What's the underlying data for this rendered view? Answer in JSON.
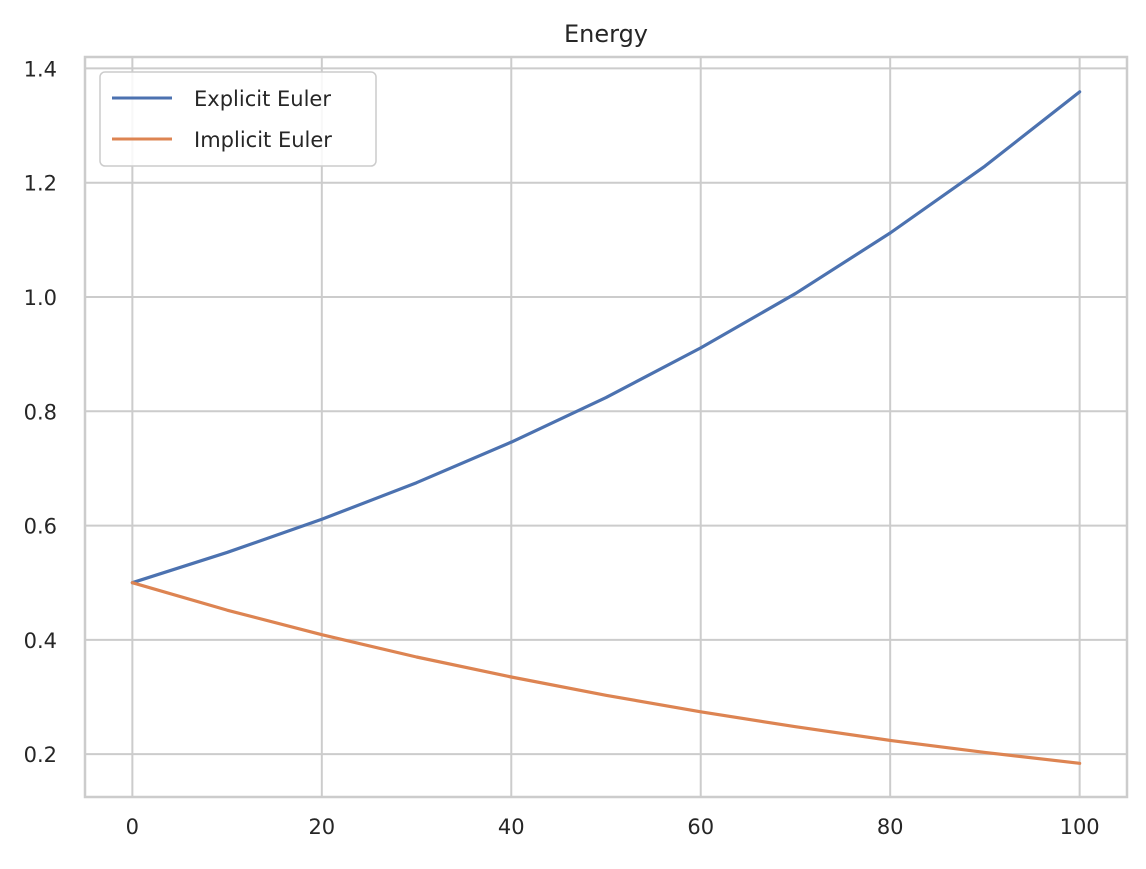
{
  "chart_data": {
    "type": "line",
    "title": "Energy",
    "xlabel": "",
    "ylabel": "",
    "xlim": [
      -5,
      105
    ],
    "ylim": [
      0.125,
      1.42
    ],
    "xticks": [
      0,
      20,
      40,
      60,
      80,
      100
    ],
    "yticks": [
      0.2,
      0.4,
      0.6,
      0.8,
      1.0,
      1.2,
      1.4
    ],
    "xtick_labels": [
      "0",
      "20",
      "40",
      "60",
      "80",
      "100"
    ],
    "ytick_labels": [
      "0.2",
      "0.4",
      "0.6",
      "0.8",
      "1.0",
      "1.2",
      "1.4"
    ],
    "grid": true,
    "legend_position": "top-left",
    "x": [
      0,
      10,
      20,
      30,
      40,
      50,
      60,
      70,
      80,
      90,
      100
    ],
    "series": [
      {
        "name": "Explicit Euler",
        "color": "#4c72b0",
        "values": [
          0.5,
          0.553,
          0.611,
          0.675,
          0.746,
          0.824,
          0.911,
          1.006,
          1.112,
          1.229,
          1.359
        ]
      },
      {
        "name": "Implicit Euler",
        "color": "#dd8452",
        "values": [
          0.5,
          0.452,
          0.409,
          0.37,
          0.335,
          0.303,
          0.274,
          0.248,
          0.224,
          0.203,
          0.184
        ]
      }
    ]
  }
}
